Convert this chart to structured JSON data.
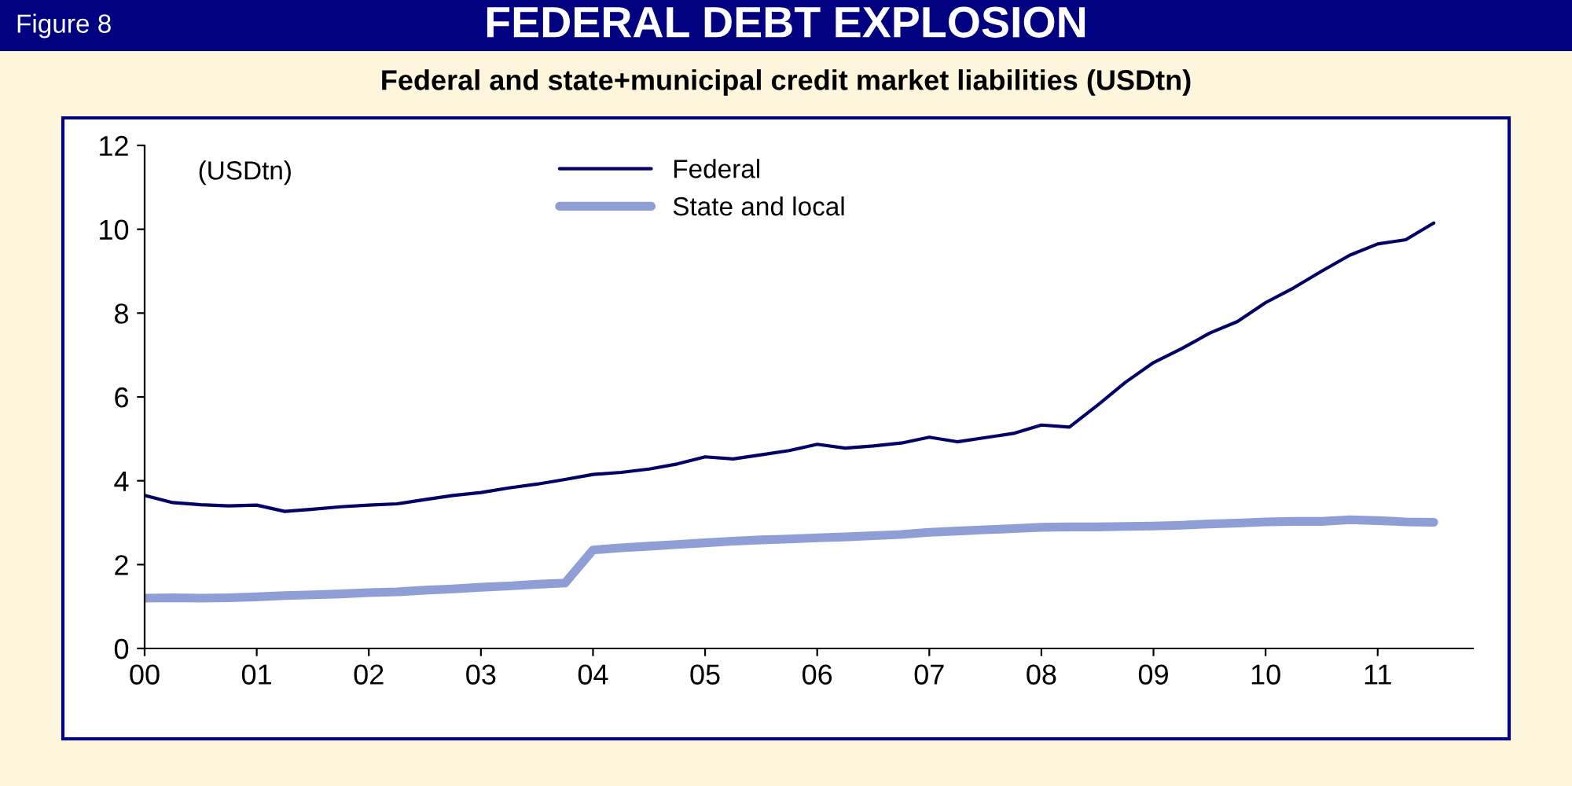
{
  "chart_data": {
    "type": "line",
    "title": "FEDERAL DEBT EXPLOSION",
    "subtitle": "Federal and state+municipal credit market liabilities (USDtn)",
    "annotations": [
      "Figure 8",
      "(USDtn)"
    ],
    "x": [
      2000.0,
      2000.25,
      2000.5,
      2000.75,
      2001.0,
      2001.25,
      2001.5,
      2001.75,
      2002.0,
      2002.25,
      2002.5,
      2002.75,
      2003.0,
      2003.25,
      2003.5,
      2003.75,
      2004.0,
      2004.25,
      2004.5,
      2004.75,
      2005.0,
      2005.25,
      2005.5,
      2005.75,
      2006.0,
      2006.25,
      2006.5,
      2006.75,
      2007.0,
      2007.25,
      2007.5,
      2007.75,
      2008.0,
      2008.25,
      2008.5,
      2008.75,
      2009.0,
      2009.25,
      2009.5,
      2009.75,
      2010.0,
      2010.25,
      2010.5,
      2010.75,
      2011.0,
      2011.25,
      2011.5
    ],
    "series": [
      {
        "name": "Federal",
        "color": "#000066",
        "values": [
          3.65,
          3.48,
          3.43,
          3.4,
          3.42,
          3.27,
          3.32,
          3.38,
          3.42,
          3.45,
          3.55,
          3.65,
          3.72,
          3.83,
          3.92,
          4.03,
          4.15,
          4.2,
          4.28,
          4.4,
          4.57,
          4.52,
          4.62,
          4.72,
          4.87,
          4.78,
          4.83,
          4.9,
          5.04,
          4.93,
          5.03,
          5.13,
          5.33,
          5.28,
          5.8,
          6.35,
          6.82,
          7.15,
          7.52,
          7.8,
          8.25,
          8.6,
          9.0,
          9.38,
          9.65,
          9.75,
          10.15
        ]
      },
      {
        "name": "State and local",
        "color": "#8f9fd6",
        "values": [
          1.2,
          1.21,
          1.2,
          1.21,
          1.23,
          1.26,
          1.28,
          1.3,
          1.33,
          1.35,
          1.39,
          1.42,
          1.46,
          1.49,
          1.53,
          1.56,
          2.35,
          2.4,
          2.44,
          2.48,
          2.52,
          2.56,
          2.59,
          2.61,
          2.64,
          2.66,
          2.69,
          2.72,
          2.77,
          2.8,
          2.83,
          2.86,
          2.89,
          2.9,
          2.9,
          2.91,
          2.92,
          2.94,
          2.97,
          2.99,
          3.02,
          3.03,
          3.03,
          3.07,
          3.05,
          3.02,
          3.01
        ]
      }
    ],
    "xlim": [
      2000,
      2011.85
    ],
    "ylim": [
      0,
      12
    ],
    "xticks": [
      {
        "value": 2000,
        "label": "00"
      },
      {
        "value": 2001,
        "label": "01"
      },
      {
        "value": 2002,
        "label": "02"
      },
      {
        "value": 2003,
        "label": "03"
      },
      {
        "value": 2004,
        "label": "04"
      },
      {
        "value": 2005,
        "label": "05"
      },
      {
        "value": 2006,
        "label": "06"
      },
      {
        "value": 2007,
        "label": "07"
      },
      {
        "value": 2008,
        "label": "08"
      },
      {
        "value": 2009,
        "label": "09"
      },
      {
        "value": 2010,
        "label": "10"
      },
      {
        "value": 2011,
        "label": "11"
      }
    ],
    "yticks": [
      0,
      2,
      4,
      6,
      8,
      10,
      12
    ],
    "grid": false,
    "legend": "top",
    "marker": "none",
    "line_style": "solid"
  }
}
